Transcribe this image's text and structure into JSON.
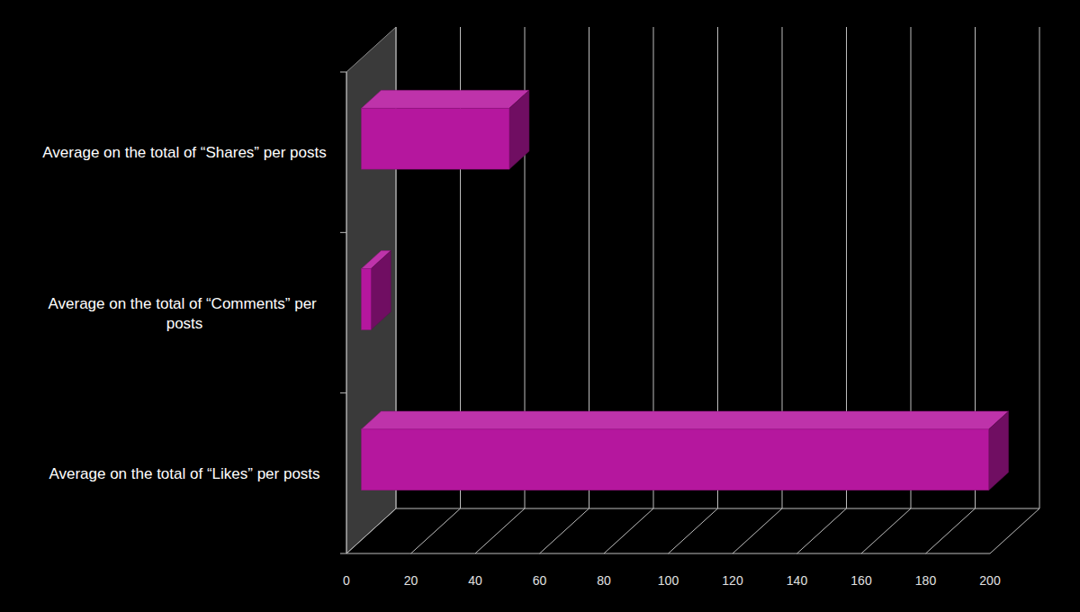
{
  "chart_data": {
    "type": "bar",
    "orientation": "horizontal",
    "categories": [
      "Average on the total of “Likes” per posts",
      "Average on the total of “Comments” per posts",
      "Average on the total of “Shares” per posts"
    ],
    "values": [
      195,
      3,
      46
    ],
    "color": "#b5179e",
    "xlim": [
      0,
      200
    ],
    "xticks": [
      0,
      20,
      40,
      60,
      80,
      100,
      120,
      140,
      160,
      180,
      200
    ],
    "grid": true
  }
}
